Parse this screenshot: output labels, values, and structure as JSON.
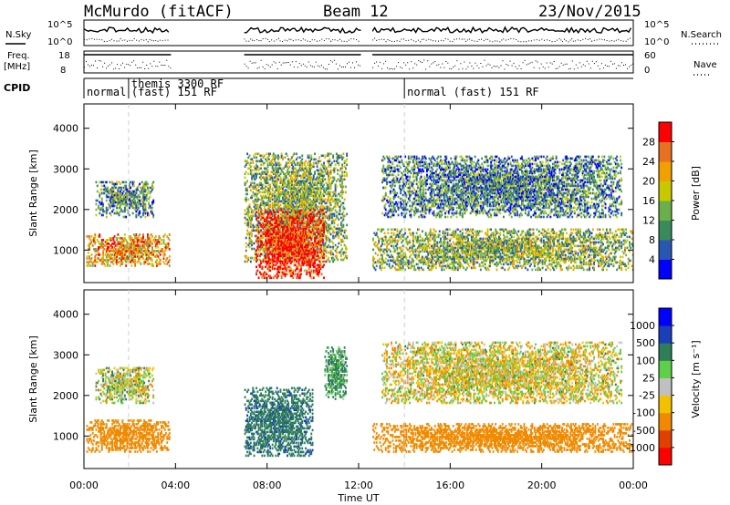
{
  "header": {
    "station": "McMurdo (fitACF)",
    "beam": "Beam 12",
    "date": "23/Nov/2015"
  },
  "top_panels": {
    "nsky_label": "N.Sky",
    "nsky_ticks": [
      "10^5",
      "10^0"
    ],
    "nsearch_label": "N.Search",
    "nsearch_ticks": [
      "10^5",
      "10^0"
    ],
    "freq_label_1": "Freq.",
    "freq_label_2": "[MHz]",
    "freq_ticks": [
      "18",
      "8"
    ],
    "nave_label": "Nave",
    "nave_ticks": [
      "60",
      "0"
    ],
    "cpid_label": "CPID",
    "cpid_segments": [
      {
        "start_hour": 0.0,
        "end_hour": 1.95,
        "label": "normal"
      },
      {
        "start_hour": 1.95,
        "end_hour": 14.0,
        "label": "themis 3300 RF",
        "label2": "(fast) 151 RF"
      },
      {
        "start_hour": 14.0,
        "end_hour": 24.0,
        "label": "normal (fast) 151 RF"
      }
    ]
  },
  "colors": {
    "power": [
      "#0000ff",
      "#2a56b3",
      "#3a8a5a",
      "#6ab04a",
      "#c8c800",
      "#f0a000",
      "#e87020",
      "#ff0000"
    ],
    "velocity": [
      "#0000ff",
      "#1a3fb8",
      "#2f7e5a",
      "#5ed048",
      "#c0c0c0",
      "#f2c200",
      "#f08a00",
      "#e04000",
      "#ff0000"
    ]
  },
  "chart_data": [
    {
      "type": "heatmap",
      "panel": "power",
      "ylabel": "Slant Range [km]",
      "xlabel": "Time UT",
      "xlim": [
        0,
        24
      ],
      "ylim": [
        200,
        4600
      ],
      "yticks": [
        1000,
        2000,
        3000,
        4000
      ],
      "xticks": [
        "00:00",
        "04:00",
        "08:00",
        "12:00",
        "16:00",
        "20:00",
        "00:00"
      ],
      "colorbar": {
        "label": "Power [dB]",
        "ticks": [
          "28",
          "24",
          "20",
          "16",
          "12",
          "8",
          "4"
        ],
        "range": [
          0,
          32
        ]
      },
      "data_gaps_hours": [
        [
          3.8,
          7.0
        ],
        [
          12.1,
          12.6
        ]
      ],
      "features": [
        {
          "t_start": 0.1,
          "t_end": 3.7,
          "r_start": 600,
          "r_end": 1400,
          "intensity": 0.7
        },
        {
          "t_start": 0.5,
          "t_end": 3.0,
          "r_start": 1800,
          "r_end": 2700,
          "intensity": 0.35
        },
        {
          "t_start": 7.0,
          "t_end": 11.5,
          "r_start": 700,
          "r_end": 3400,
          "intensity": 0.45
        },
        {
          "t_start": 7.5,
          "t_end": 10.5,
          "r_start": 300,
          "r_end": 2000,
          "intensity": 0.95
        },
        {
          "t_start": 12.6,
          "t_end": 24.0,
          "r_start": 500,
          "r_end": 1500,
          "intensity": 0.45
        },
        {
          "t_start": 13.0,
          "t_end": 23.5,
          "r_start": 1800,
          "r_end": 3300,
          "intensity": 0.3
        }
      ]
    },
    {
      "type": "heatmap",
      "panel": "velocity",
      "ylabel": "Slant Range [km]",
      "xlabel": "Time UT",
      "xlim": [
        0,
        24
      ],
      "ylim": [
        200,
        4600
      ],
      "yticks": [
        1000,
        2000,
        3000,
        4000
      ],
      "xticks": [
        "00:00",
        "04:00",
        "08:00",
        "12:00",
        "16:00",
        "20:00",
        "00:00"
      ],
      "colorbar": {
        "label": "Velocity [m s⁻¹]",
        "ticks": [
          "1000",
          "500",
          "100",
          "25",
          "-25",
          "-100",
          "-500",
          "-1000"
        ],
        "range": [
          -1200,
          1200
        ]
      },
      "data_gaps_hours": [
        [
          3.8,
          7.0
        ],
        [
          12.1,
          12.6
        ]
      ],
      "features": [
        {
          "t_start": 0.1,
          "t_end": 3.7,
          "r_start": 600,
          "r_end": 1400,
          "velocity": -250
        },
        {
          "t_start": 0.5,
          "t_end": 3.0,
          "r_start": 1800,
          "r_end": 2700,
          "velocity": 0
        },
        {
          "t_start": 7.0,
          "t_end": 10.0,
          "r_start": 500,
          "r_end": 2200,
          "velocity": 400
        },
        {
          "t_start": 10.5,
          "t_end": 11.5,
          "r_start": 1900,
          "r_end": 3200,
          "velocity": 150
        },
        {
          "t_start": 12.6,
          "t_end": 24.0,
          "r_start": 600,
          "r_end": 1300,
          "velocity": -250
        },
        {
          "t_start": 13.0,
          "t_end": 23.5,
          "r_start": 1800,
          "r_end": 3300,
          "velocity": -40
        }
      ]
    }
  ]
}
